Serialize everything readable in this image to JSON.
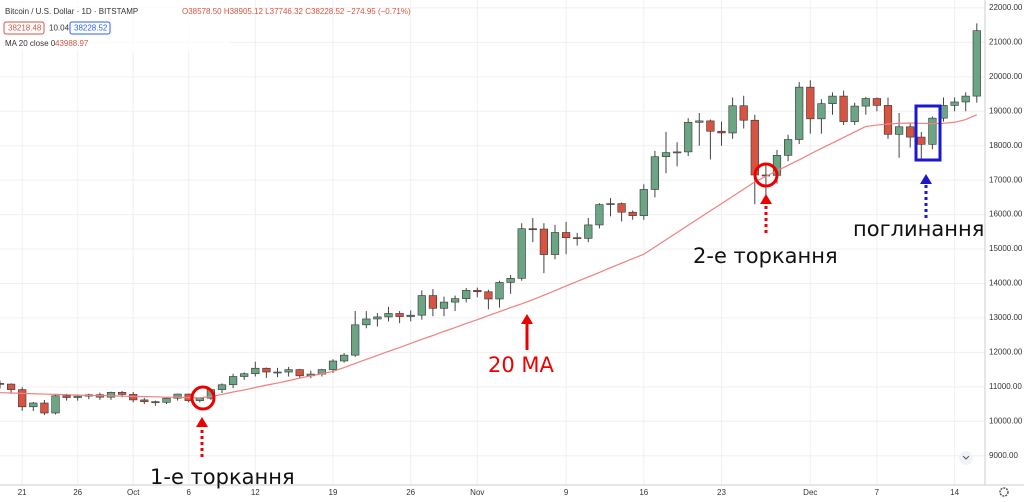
{
  "chart_data": {
    "type": "candlestick",
    "title": "Bitcoin / U.S. Dollar · 1D · BITSTAMP",
    "header_ohlc": "O38578.50 H38905.12 L37746.32 C38228.52 −274.95 (−0.71%)",
    "header_bid": "38218.48",
    "header_spread": "10.04",
    "header_ask": "38228.52",
    "header_ma_value": "43988.97",
    "annotations": [
      "1-е торкання",
      "20 MA",
      "2-е торкання",
      "поглинання"
    ],
    "up_color": "#6ba583",
    "down_color": "#d75442",
    "grid": true,
    "categories": [
      null,
      null,
      "21",
      null,
      null,
      null,
      null,
      "26",
      null,
      null,
      null,
      null,
      "Oct",
      null,
      null,
      null,
      null,
      "6",
      null,
      null,
      null,
      null,
      null,
      "12",
      null,
      null,
      null,
      null,
      null,
      null,
      "19",
      null,
      null,
      null,
      null,
      null,
      null,
      "26",
      null,
      null,
      null,
      null,
      null,
      "Nov",
      null,
      null,
      null,
      null,
      null,
      null,
      null,
      "9",
      null,
      null,
      null,
      null,
      null,
      null,
      "16",
      null,
      null,
      null,
      null,
      null,
      null,
      "23",
      null,
      null,
      null,
      null,
      null,
      null,
      null,
      "Dec",
      null,
      null,
      null,
      null,
      null,
      "7",
      null,
      null,
      null,
      null,
      null,
      null,
      "14",
      null,
      null
    ],
    "open": [
      11100,
      11080,
      10920,
      10420,
      10530,
      10240,
      10740,
      10690,
      10730,
      10770,
      10700,
      10840,
      10780,
      10620,
      10570,
      10550,
      10670,
      10790,
      10600,
      10670,
      10920,
      11060,
      11300,
      11380,
      11540,
      11430,
      11430,
      11500,
      11320,
      11370,
      11500,
      11750,
      11920,
      12800,
      12970,
      13030,
      13130,
      13040,
      13080,
      13650,
      13280,
      13460,
      13560,
      13800,
      13760,
      13550,
      14030,
      14150,
      15590,
      15580,
      14840,
      15480,
      15330,
      15310,
      15700,
      16290,
      16320,
      16070,
      15970,
      16730,
      17680,
      17800,
      17820,
      18680,
      18720,
      18420,
      18370,
      19160,
      18740,
      17150,
      17140,
      17720,
      18180,
      19700,
      18780,
      19220,
      19440,
      18700,
      19150,
      19370,
      19170,
      18330,
      18550,
      18250,
      18040,
      18800,
      19170,
      19270,
      19440
    ],
    "high": [
      11180,
      11100,
      10990,
      10560,
      10620,
      10770,
      10800,
      10780,
      10800,
      10830,
      10860,
      10880,
      10850,
      10680,
      10600,
      10700,
      10800,
      10800,
      10690,
      10950,
      11100,
      11380,
      11420,
      11730,
      11560,
      11550,
      11580,
      11520,
      11470,
      11520,
      11800,
      11980,
      13200,
      13200,
      13140,
      13320,
      13200,
      13220,
      13800,
      13840,
      13620,
      13650,
      13870,
      13880,
      13820,
      14080,
      14250,
      15750,
      15900,
      15750,
      15700,
      15790,
      15470,
      15900,
      16330,
      16480,
      16350,
      16120,
      16880,
      17850,
      18400,
      18100,
      18800,
      18950,
      18760,
      18700,
      19400,
      19450,
      18900,
      17450,
      17880,
      18320,
      19850,
      19900,
      19350,
      19550,
      19600,
      19250,
      19420,
      19400,
      19400,
      18950,
      18650,
      18400,
      18850,
      19400,
      19400,
      19550,
      21550
    ],
    "low": [
      10950,
      10800,
      10300,
      10300,
      10180,
      10200,
      10600,
      10600,
      10640,
      10620,
      10620,
      10700,
      10550,
      10500,
      10450,
      10500,
      10600,
      10550,
      10550,
      10620,
      10820,
      10960,
      11200,
      11300,
      11260,
      11280,
      11300,
      11250,
      11250,
      11300,
      11400,
      11700,
      11870,
      12700,
      12750,
      12900,
      12850,
      12900,
      12950,
      13050,
      13050,
      13200,
      13450,
      13600,
      13250,
      13300,
      13700,
      14080,
      15200,
      14300,
      14700,
      14850,
      15100,
      15200,
      15600,
      15950,
      15800,
      15850,
      15850,
      16500,
      17200,
      17400,
      17700,
      18000,
      17600,
      18000,
      18200,
      18500,
      16300,
      16500,
      16900,
      17550,
      18050,
      18350,
      18350,
      18900,
      18600,
      18600,
      18900,
      19000,
      18200,
      17650,
      17950,
      17600,
      17900,
      18700,
      19000,
      19000,
      19250
    ],
    "close": [
      11080,
      10920,
      10420,
      10530,
      10240,
      10740,
      10690,
      10730,
      10770,
      10700,
      10840,
      10780,
      10620,
      10570,
      10550,
      10670,
      10790,
      10600,
      10670,
      10920,
      11060,
      11300,
      11380,
      11540,
      11430,
      11430,
      11500,
      11320,
      11370,
      11500,
      11750,
      11920,
      12800,
      12970,
      13030,
      13130,
      13040,
      13080,
      13650,
      13280,
      13460,
      13560,
      13800,
      13760,
      13550,
      14030,
      14150,
      15590,
      15580,
      14840,
      15480,
      15330,
      15310,
      15700,
      16290,
      16320,
      16070,
      15970,
      16730,
      17680,
      17800,
      17820,
      18680,
      18720,
      18420,
      18370,
      19160,
      18740,
      17150,
      17140,
      17720,
      18180,
      19700,
      18780,
      19220,
      19440,
      18700,
      19150,
      19370,
      19170,
      18330,
      18550,
      18250,
      18040,
      18800,
      19170,
      19270,
      19440,
      21340
    ],
    "series": [
      {
        "name": "MA 20 close 0",
        "color": "#f08080",
        "values": [
          10830,
          10820,
          10810,
          10800,
          10790,
          10780,
          10770,
          10760,
          10750,
          10745,
          10740,
          10730,
          10720,
          10715,
          10710,
          10700,
          10695,
          10690,
          10680,
          10720,
          10780,
          10850,
          10910,
          10980,
          11050,
          11110,
          11180,
          11250,
          11320,
          11380,
          11450,
          11560,
          11680,
          11800,
          11910,
          12030,
          12140,
          12260,
          12380,
          12490,
          12610,
          12720,
          12840,
          12950,
          13070,
          13180,
          13300,
          13410,
          13530,
          13660,
          13790,
          13930,
          14060,
          14190,
          14320,
          14460,
          14590,
          14720,
          14850,
          15060,
          15270,
          15480,
          15690,
          15900,
          16110,
          16320,
          16530,
          16740,
          16950,
          17110,
          17270,
          17430,
          17590,
          17760,
          17920,
          18080,
          18240,
          18400,
          18560,
          18600,
          18630,
          18650,
          18660,
          18650,
          18640,
          18650,
          18680,
          18760,
          18900
        ]
      }
    ],
    "ylim": [
      8150,
      22230
    ],
    "yticks": [
      {
        "value": 9000,
        "label": "9000.00"
      },
      {
        "value": 10000,
        "label": "10000.00"
      },
      {
        "value": 11000,
        "label": "11000.00"
      },
      {
        "value": 12000,
        "label": "12000.00"
      },
      {
        "value": 13000,
        "label": "13000.00"
      },
      {
        "value": 14000,
        "label": "14000.00"
      },
      {
        "value": 15000,
        "label": "15000.00"
      },
      {
        "value": 16000,
        "label": "16000.00"
      },
      {
        "value": 17000,
        "label": "17000.00"
      },
      {
        "value": 18000,
        "label": "18000.00"
      },
      {
        "value": 19000,
        "label": "19000.00"
      },
      {
        "value": 20000,
        "label": "20000.00"
      },
      {
        "value": 21000,
        "label": "21000.00"
      },
      {
        "value": 22000,
        "label": "22000.00"
      }
    ]
  }
}
